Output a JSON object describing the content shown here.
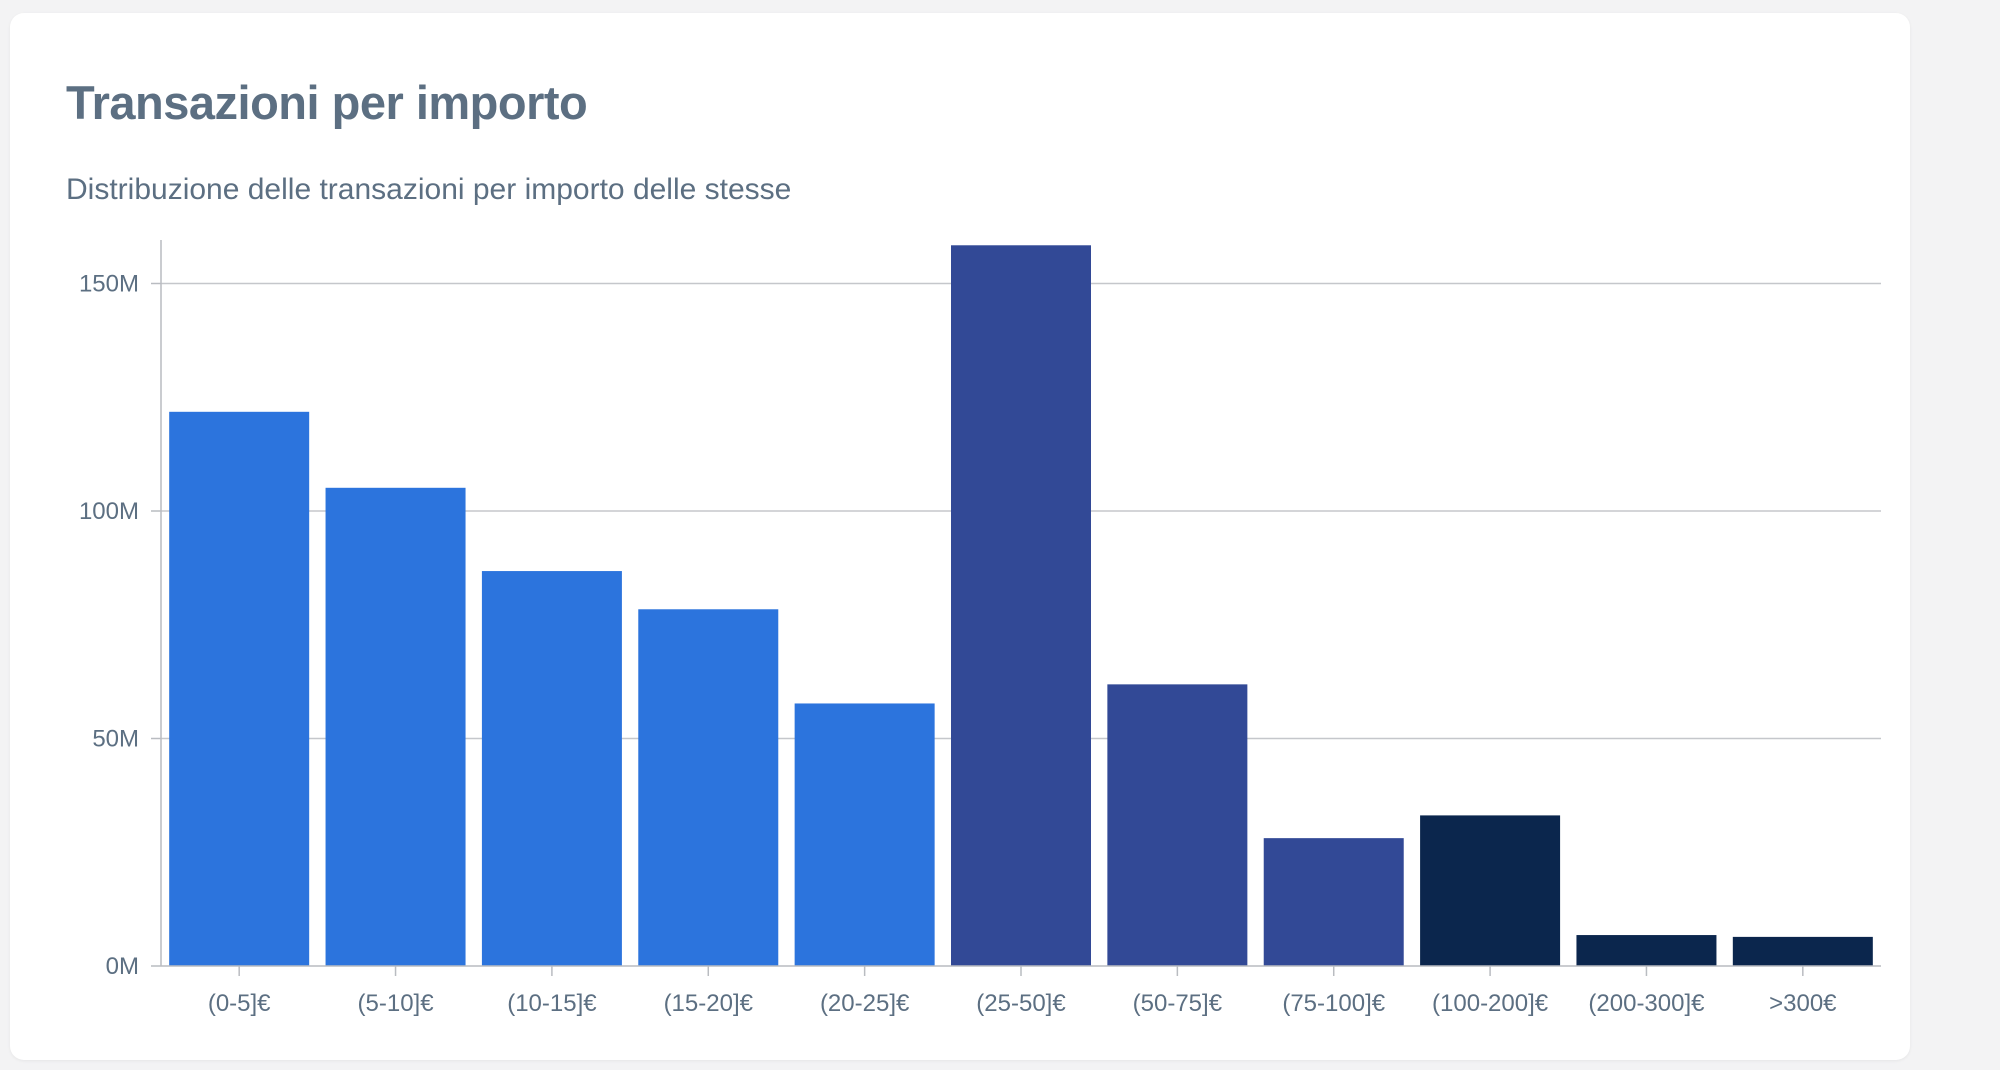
{
  "card": {
    "title": "Transazioni per importo",
    "subtitle": "Distribuzione delle transazioni per importo delle stesse"
  },
  "chart_data": {
    "type": "bar",
    "categories": [
      "(0-5]€",
      "(5-10]€",
      "(10-15]€",
      "(15-20]€",
      "(20-25]€",
      "(25-50]€",
      "(50-75]€",
      "(75-100]€",
      "(100-200]€",
      "(200-300]€",
      ">300€"
    ],
    "values": [
      121.8,
      105.1,
      86.8,
      78.4,
      57.7,
      158.4,
      61.9,
      28.1,
      33.1,
      6.8,
      6.4
    ],
    "bar_colors": [
      "#2c74dd",
      "#2c74dd",
      "#2c74dd",
      "#2c74dd",
      "#2c74dd",
      "#324996",
      "#324996",
      "#324996",
      "#0b264d",
      "#0b264d",
      "#0b264d"
    ],
    "ylim": [
      0,
      160
    ],
    "yticks": [
      0,
      50,
      100,
      150
    ],
    "ytick_labels": [
      "0M",
      "50M",
      "100M",
      "150M"
    ],
    "grid": true,
    "colors": {
      "grid": "#c5c7cb",
      "axis": "#b9bcc1",
      "text": "#5c6f82"
    }
  }
}
